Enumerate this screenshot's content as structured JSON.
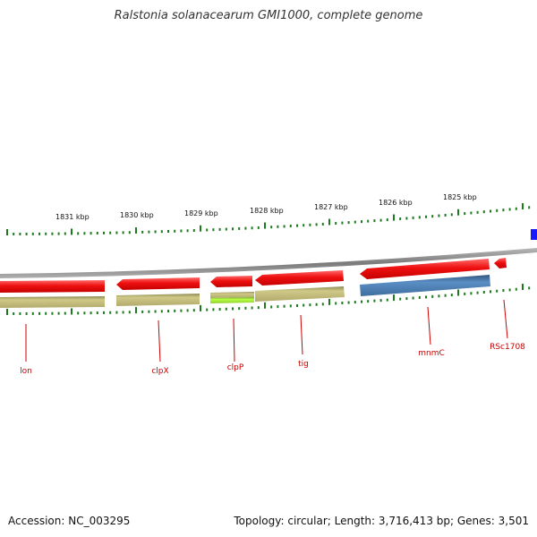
{
  "title": "Ralstonia solanacearum GMI1000, complete genome",
  "footer": {
    "accession": "Accession: NC_003295",
    "summary": "Topology: circular; Length: 3,716,413 bp; Genes: 3,501"
  },
  "colors": {
    "backbone": "#8a8a8a",
    "cds": "#ee1c1c",
    "gene_olive": "#c3bc78",
    "gene_lime": "#a6f23a",
    "gene_blue": "#4f7fb0",
    "marker_blue": "#1a1aff",
    "tick": "#1e7a1e",
    "label": "#cc0000"
  },
  "scale": {
    "unit": "kbp",
    "labels": [
      "1831 kbp",
      "1830 kbp",
      "1829 kbp",
      "1828 kbp",
      "1827 kbp",
      "1826 kbp",
      "1825 kbp"
    ]
  },
  "genes": [
    {
      "name": "lon"
    },
    {
      "name": "clpX"
    },
    {
      "name": "clpP"
    },
    {
      "name": "tig"
    },
    {
      "name": "mnmC"
    },
    {
      "name": "RSc1708"
    }
  ]
}
